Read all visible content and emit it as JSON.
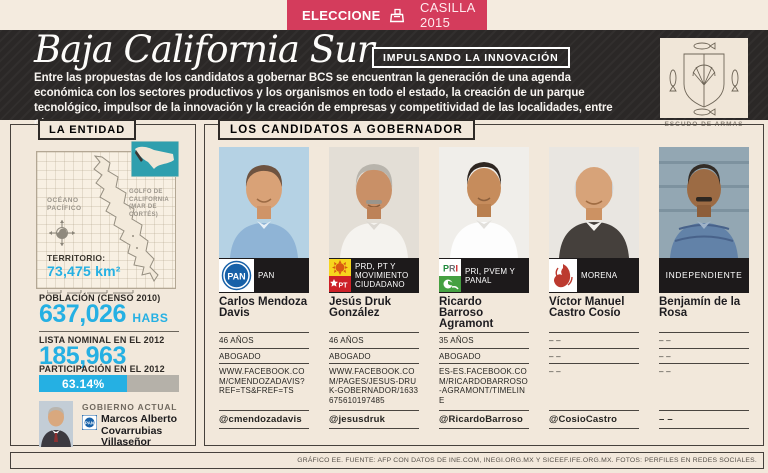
{
  "badge": {
    "elecciones": "ELECCIONES",
    "casilla": "CASILLA 2015"
  },
  "header": {
    "title": "Baja California Sur",
    "innovation": "IMPULSANDO LA INNOVACIÓN",
    "paragraph": "Entre las propuestas de los candidatos a gobernar BCS se encuentran la generación de una agenda económica con los sectores productivos y los organismos en todo el estado, la creación de un parque tecnológico, impulsor de la innovación y la creación de empresas y competitividad de las localidades, entre otros.",
    "escudo_caption": "ESCUDO DE ARMAS"
  },
  "entity": {
    "title": "LA ENTIDAD",
    "map": {
      "ocean": "OCÉANO PACÍFICO",
      "gulf": "GOLFO DE CALIFORNIA (MAR DE CORTÉS)",
      "territory_label": "TERRITORIO:",
      "territory_value": "73,475 km²"
    },
    "population_label": "POBLACIÓN (CENSO 2010)",
    "population_value": "637,026",
    "population_unit": "HABS",
    "lista_label": "LISTA NOMINAL EN EL 2012",
    "lista_value": "185,963",
    "participation_label": "PARTICIPACIÓN EN EL 2012",
    "participation_value": "63.14%",
    "participation_pct": 63.14,
    "government_label": "GOBIERNO ACTUAL",
    "governor_name": "Marcos Alberto Covarrubias Villaseñor"
  },
  "candidates": {
    "title": "LOS CANDIDATOS A GOBERNADOR",
    "list": [
      {
        "name": "Carlos Mendoza Davis",
        "party": "PAN",
        "age": "46 AÑOS",
        "profession": "ABOGADO",
        "facebook": "WWW.FACEBOOK.COM/CMENDOZADAVIS?REF=TS&FREF=TS",
        "twitter": "@cmendozadavis"
      },
      {
        "name": "Jesús Druk González",
        "party": "PRD, PT Y MOVIMIENTO CIUDADANO",
        "age": "46 AÑOS",
        "profession": "ABOGADO",
        "facebook": "WWW.FACEBOOK.COM/PAGES/JESUS-DRUK-GOBERNADOR/1633675610197485",
        "twitter": "@jesusdruk"
      },
      {
        "name": "Ricardo Barroso Agramont",
        "party": "PRI, PVEM Y PANAL",
        "age": "35 AÑOS",
        "profession": "ABOGADO",
        "facebook": "ES-ES.FACEBOOK.COM/RICARDOBARROSO-AGRAMONT/TIMELINE",
        "twitter": "@RicardoBarroso"
      },
      {
        "name": "Víctor Manuel Castro Cosío",
        "party": "MORENA",
        "age": "– –",
        "profession": "– –",
        "facebook": "– –",
        "twitter": "@CosioCastro"
      },
      {
        "name": "Benjamín de la Rosa",
        "party": "INDEPENDIENTE",
        "age": "– –",
        "profession": "– –",
        "facebook": "– –",
        "twitter": "– –"
      }
    ]
  },
  "footer": {
    "source": "GRÁFICO EE. FUENTE: AFP CON DATOS DE INE.COM, INEGI.ORG.MX Y SICEEF.IFE.ORG.MX. FOTOS: PERFILES EN REDES SOCIALES."
  },
  "colors": {
    "accent_red": "#d43c5c",
    "accent_cyan": "#25b0e3",
    "band_dark": "#2b2827",
    "cream": "#f2e8db"
  }
}
